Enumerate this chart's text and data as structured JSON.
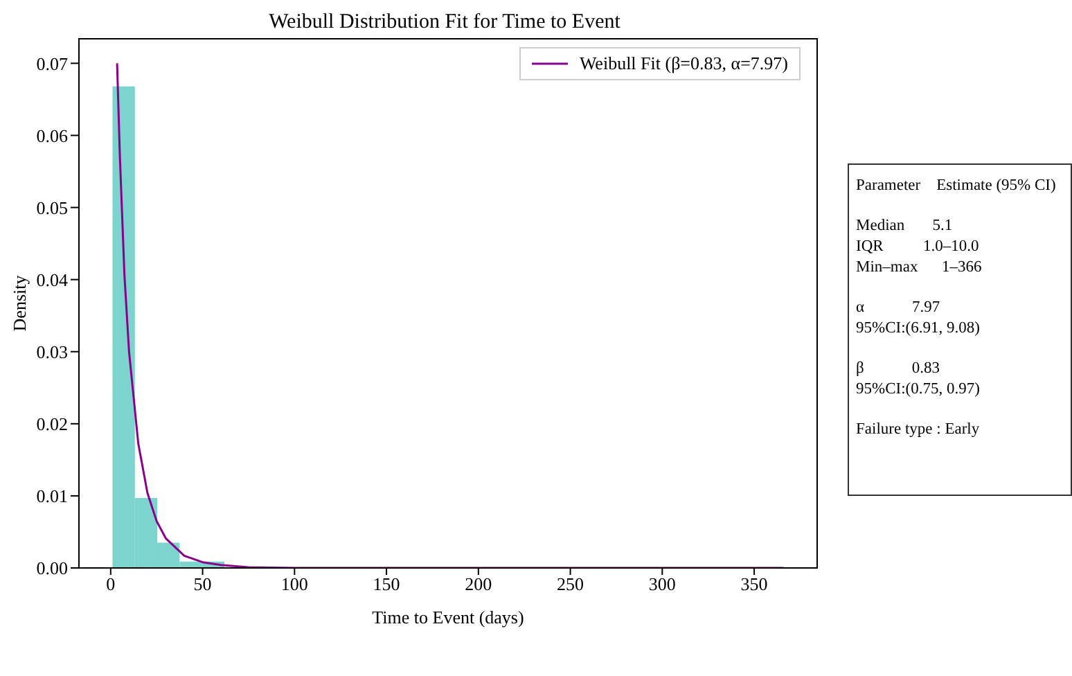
{
  "chart_data": {
    "type": "histogram",
    "title": "Weibull Distribution Fit for Time to Event",
    "xlabel": "Time to Event (days)",
    "ylabel": "Density",
    "bins": [
      1,
      13.17,
      25.33,
      37.5,
      49.67,
      61.83,
      74,
      86.17,
      98.33,
      110.5,
      122.67,
      134.83,
      147,
      159.17,
      171.33,
      183.5,
      195.67,
      207.83,
      220,
      232.17,
      244.33,
      256.5,
      268.67,
      280.83,
      293,
      305.17,
      317.33,
      329.5,
      341.67,
      353.83,
      366
    ],
    "values": [
      0.0668,
      0.0097,
      0.0035,
      0.0009,
      0.0009,
      null,
      0.0001,
      0,
      0,
      0,
      0,
      0,
      0,
      0,
      0,
      0,
      0,
      0,
      0,
      0,
      0,
      0,
      0,
      0,
      0,
      0,
      0,
      0,
      0,
      0.0001
    ],
    "color": "#7dd3ce",
    "series": [
      {
        "name": "Weibull Fit (β=0.83, α=7.97)",
        "type": "line",
        "color": "#8b008b",
        "x": [
          3.5,
          5,
          7.5,
          10,
          15,
          20,
          25,
          30,
          40,
          50,
          60,
          75,
          100,
          150,
          250,
          366
        ],
        "values": [
          0.07,
          0.0572,
          0.0406,
          0.03,
          0.0173,
          0.0104,
          0.0065,
          0.0041,
          0.0017,
          0.0008,
          0.0004,
          0.0001,
          0,
          0,
          0,
          0
        ]
      }
    ],
    "xlim": [
      -17.25,
      384.25
    ],
    "xticks": [
      0,
      50,
      100,
      150,
      200,
      250,
      300,
      350
    ],
    "ylim": [
      0,
      0.0734
    ],
    "yticks": [
      {
        "value": 0,
        "label": "0.00"
      },
      {
        "value": 0.01,
        "label": "0.01"
      },
      {
        "value": 0.02,
        "label": "0.02"
      },
      {
        "value": 0.03,
        "label": "0.03"
      },
      {
        "value": 0.04,
        "label": "0.04"
      },
      {
        "value": 0.05,
        "label": "0.05"
      },
      {
        "value": 0.06,
        "label": "0.06"
      },
      {
        "value": 0.07,
        "label": "0.07"
      }
    ],
    "legend": "top right",
    "grid": false,
    "annotations": [
      "Parameter    Estimate (95% CI)",
      "Median       5.1\nIQR          1.0–10.0\nMin–max      1–366",
      "α            7.97\n95%CI:(6.91, 9.08)",
      "β            0.83\n95%CI:(0.75, 0.97)",
      "Failure type : Early"
    ]
  }
}
